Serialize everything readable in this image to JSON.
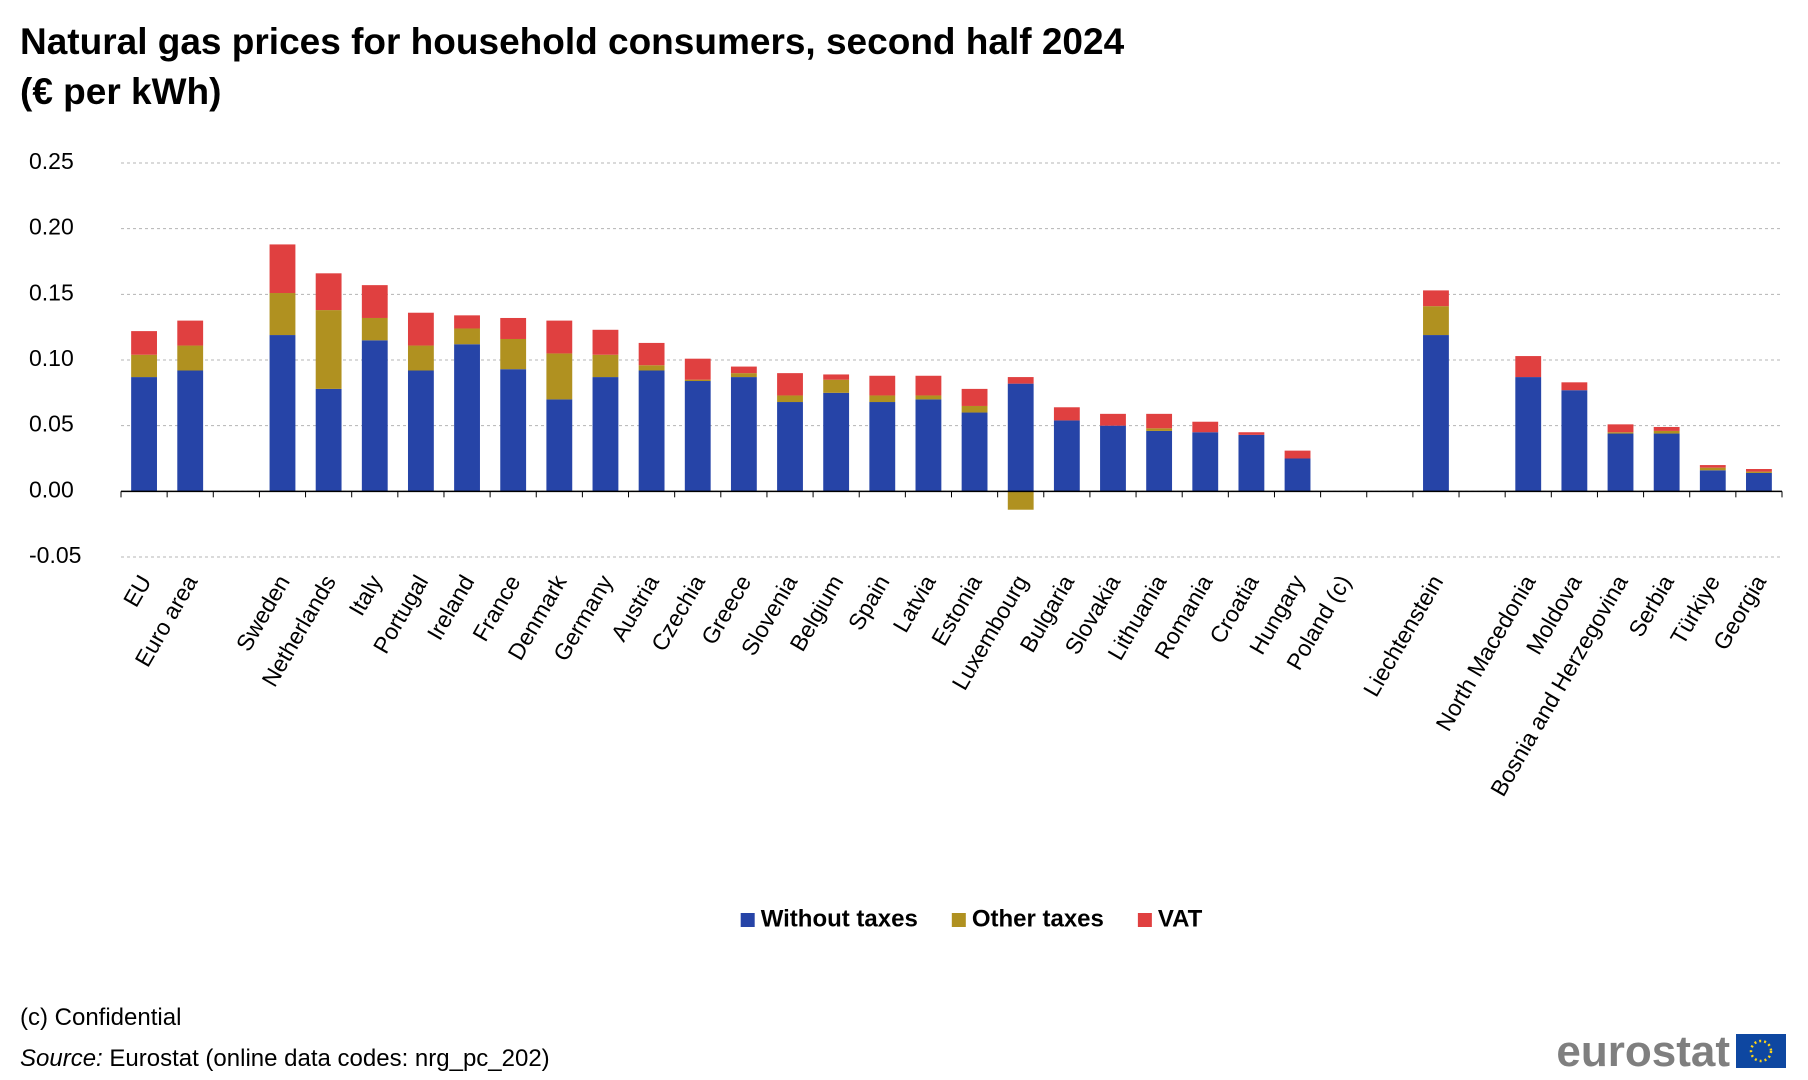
{
  "chart_data": {
    "type": "stacked_bar",
    "title": "Natural gas prices for household consumers, second half 2024",
    "subtitle": "(€ per kWh)",
    "categories": [
      "EU",
      "Euro area",
      null,
      "Sweden",
      "Netherlands",
      "Italy",
      "Portugal",
      "Ireland",
      "France",
      "Denmark",
      "Germany",
      "Austria",
      "Czechia",
      "Greece",
      "Slovenia",
      "Belgium",
      "Spain",
      "Latvia",
      "Estonia",
      "Luxembourg",
      "Bulgaria",
      "Slovakia",
      "Lithuania",
      "Romania",
      "Croatia",
      "Hungary",
      "Poland (c)",
      null,
      "Liechtenstein",
      null,
      "North Macedonia",
      "Moldova",
      "Bosnia and Herzegovina",
      "Serbia",
      "Türkiye",
      "Georgia"
    ],
    "series": [
      {
        "name": "Without taxes",
        "color": "#2644a7",
        "values": [
          0.087,
          0.092,
          null,
          0.119,
          0.078,
          0.115,
          0.092,
          0.112,
          0.093,
          0.07,
          0.087,
          0.092,
          0.084,
          0.087,
          0.068,
          0.075,
          0.068,
          0.07,
          0.06,
          0.082,
          0.054,
          0.05,
          0.046,
          0.045,
          0.043,
          0.025,
          null,
          null,
          0.119,
          null,
          0.087,
          0.077,
          0.044,
          0.044,
          0.016,
          0.014
        ]
      },
      {
        "name": "Other taxes",
        "color": "#b09120",
        "values": [
          0.017,
          0.019,
          null,
          0.032,
          0.06,
          0.017,
          0.019,
          0.012,
          0.023,
          0.035,
          0.017,
          0.004,
          0.001,
          0.003,
          0.005,
          0.01,
          0.005,
          0.003,
          0.005,
          -0.014,
          0,
          0,
          0.002,
          0,
          0,
          0,
          null,
          null,
          0.022,
          null,
          0,
          0,
          0.001,
          0.002,
          0.002,
          0.001
        ]
      },
      {
        "name": "VAT",
        "color": "#e04040",
        "values": [
          0.018,
          0.019,
          null,
          0.037,
          0.028,
          0.025,
          0.025,
          0.01,
          0.016,
          0.025,
          0.019,
          0.017,
          0.016,
          0.005,
          0.017,
          0.004,
          0.015,
          0.015,
          0.013,
          0.005,
          0.01,
          0.009,
          0.011,
          0.008,
          0.002,
          0.006,
          null,
          null,
          0.012,
          null,
          0.016,
          0.006,
          0.006,
          0.003,
          0.002,
          0.002
        ]
      }
    ],
    "ylim": [
      -0.05,
      0.25
    ],
    "yticks": [
      {
        "value": -0.05,
        "label": "-0.05"
      },
      {
        "value": 0,
        "label": "0.00"
      },
      {
        "value": 0.05,
        "label": "0.05"
      },
      {
        "value": 0.1,
        "label": "0.10"
      },
      {
        "value": 0.15,
        "label": "0.15"
      },
      {
        "value": 0.2,
        "label": "0.20"
      },
      {
        "value": 0.25,
        "label": "0.25"
      }
    ],
    "grid": true,
    "legend": "bottom",
    "footnote": "(c) Confidential",
    "source_label": "Source:",
    "source_text": " Eurostat (online data codes: nrg_pc_202)",
    "logo": "eurostat"
  }
}
